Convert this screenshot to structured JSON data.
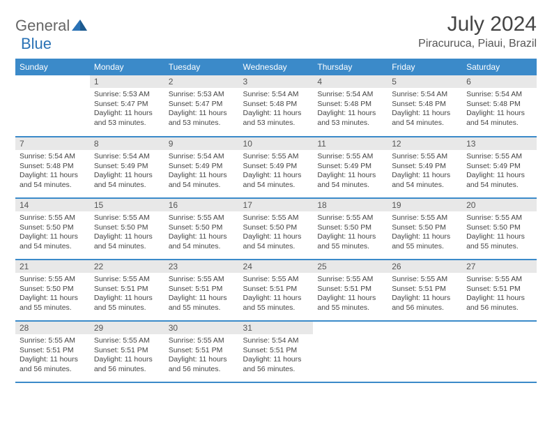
{
  "logo": {
    "word1": "General",
    "word2": "Blue"
  },
  "title": "July 2024",
  "location": "Piracuruca, Piaui, Brazil",
  "colors": {
    "header_bg": "#3b8ac9",
    "header_fg": "#ffffff",
    "daynum_bg": "#e8e8e8",
    "row_divider": "#3b8ac9",
    "text": "#444444",
    "logo_gray": "#666666",
    "logo_blue": "#2a72b5",
    "page_bg": "#ffffff"
  },
  "typography": {
    "title_fontsize": 30,
    "location_fontsize": 16,
    "weekday_fontsize": 12,
    "daynum_fontsize": 12,
    "detail_fontsize": 10.5
  },
  "weekdays": [
    "Sunday",
    "Monday",
    "Tuesday",
    "Wednesday",
    "Thursday",
    "Friday",
    "Saturday"
  ],
  "weeks": [
    [
      null,
      {
        "n": "1",
        "sunrise": "5:53 AM",
        "sunset": "5:47 PM",
        "daylight": "11 hours and 53 minutes."
      },
      {
        "n": "2",
        "sunrise": "5:53 AM",
        "sunset": "5:47 PM",
        "daylight": "11 hours and 53 minutes."
      },
      {
        "n": "3",
        "sunrise": "5:54 AM",
        "sunset": "5:48 PM",
        "daylight": "11 hours and 53 minutes."
      },
      {
        "n": "4",
        "sunrise": "5:54 AM",
        "sunset": "5:48 PM",
        "daylight": "11 hours and 53 minutes."
      },
      {
        "n": "5",
        "sunrise": "5:54 AM",
        "sunset": "5:48 PM",
        "daylight": "11 hours and 54 minutes."
      },
      {
        "n": "6",
        "sunrise": "5:54 AM",
        "sunset": "5:48 PM",
        "daylight": "11 hours and 54 minutes."
      }
    ],
    [
      {
        "n": "7",
        "sunrise": "5:54 AM",
        "sunset": "5:48 PM",
        "daylight": "11 hours and 54 minutes."
      },
      {
        "n": "8",
        "sunrise": "5:54 AM",
        "sunset": "5:49 PM",
        "daylight": "11 hours and 54 minutes."
      },
      {
        "n": "9",
        "sunrise": "5:54 AM",
        "sunset": "5:49 PM",
        "daylight": "11 hours and 54 minutes."
      },
      {
        "n": "10",
        "sunrise": "5:55 AM",
        "sunset": "5:49 PM",
        "daylight": "11 hours and 54 minutes."
      },
      {
        "n": "11",
        "sunrise": "5:55 AM",
        "sunset": "5:49 PM",
        "daylight": "11 hours and 54 minutes."
      },
      {
        "n": "12",
        "sunrise": "5:55 AM",
        "sunset": "5:49 PM",
        "daylight": "11 hours and 54 minutes."
      },
      {
        "n": "13",
        "sunrise": "5:55 AM",
        "sunset": "5:49 PM",
        "daylight": "11 hours and 54 minutes."
      }
    ],
    [
      {
        "n": "14",
        "sunrise": "5:55 AM",
        "sunset": "5:50 PM",
        "daylight": "11 hours and 54 minutes."
      },
      {
        "n": "15",
        "sunrise": "5:55 AM",
        "sunset": "5:50 PM",
        "daylight": "11 hours and 54 minutes."
      },
      {
        "n": "16",
        "sunrise": "5:55 AM",
        "sunset": "5:50 PM",
        "daylight": "11 hours and 54 minutes."
      },
      {
        "n": "17",
        "sunrise": "5:55 AM",
        "sunset": "5:50 PM",
        "daylight": "11 hours and 54 minutes."
      },
      {
        "n": "18",
        "sunrise": "5:55 AM",
        "sunset": "5:50 PM",
        "daylight": "11 hours and 55 minutes."
      },
      {
        "n": "19",
        "sunrise": "5:55 AM",
        "sunset": "5:50 PM",
        "daylight": "11 hours and 55 minutes."
      },
      {
        "n": "20",
        "sunrise": "5:55 AM",
        "sunset": "5:50 PM",
        "daylight": "11 hours and 55 minutes."
      }
    ],
    [
      {
        "n": "21",
        "sunrise": "5:55 AM",
        "sunset": "5:50 PM",
        "daylight": "11 hours and 55 minutes."
      },
      {
        "n": "22",
        "sunrise": "5:55 AM",
        "sunset": "5:51 PM",
        "daylight": "11 hours and 55 minutes."
      },
      {
        "n": "23",
        "sunrise": "5:55 AM",
        "sunset": "5:51 PM",
        "daylight": "11 hours and 55 minutes."
      },
      {
        "n": "24",
        "sunrise": "5:55 AM",
        "sunset": "5:51 PM",
        "daylight": "11 hours and 55 minutes."
      },
      {
        "n": "25",
        "sunrise": "5:55 AM",
        "sunset": "5:51 PM",
        "daylight": "11 hours and 55 minutes."
      },
      {
        "n": "26",
        "sunrise": "5:55 AM",
        "sunset": "5:51 PM",
        "daylight": "11 hours and 56 minutes."
      },
      {
        "n": "27",
        "sunrise": "5:55 AM",
        "sunset": "5:51 PM",
        "daylight": "11 hours and 56 minutes."
      }
    ],
    [
      {
        "n": "28",
        "sunrise": "5:55 AM",
        "sunset": "5:51 PM",
        "daylight": "11 hours and 56 minutes."
      },
      {
        "n": "29",
        "sunrise": "5:55 AM",
        "sunset": "5:51 PM",
        "daylight": "11 hours and 56 minutes."
      },
      {
        "n": "30",
        "sunrise": "5:55 AM",
        "sunset": "5:51 PM",
        "daylight": "11 hours and 56 minutes."
      },
      {
        "n": "31",
        "sunrise": "5:54 AM",
        "sunset": "5:51 PM",
        "daylight": "11 hours and 56 minutes."
      },
      null,
      null,
      null
    ]
  ],
  "labels": {
    "sunrise": "Sunrise:",
    "sunset": "Sunset:",
    "daylight": "Daylight:"
  }
}
